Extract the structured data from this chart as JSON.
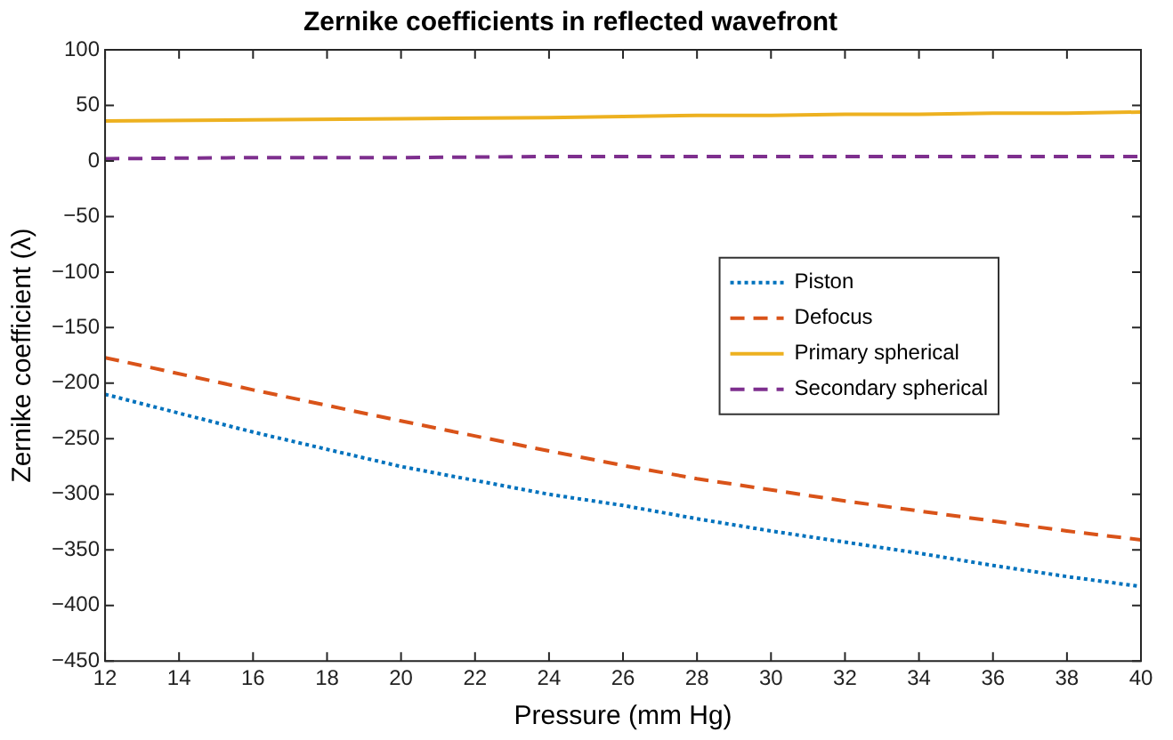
{
  "chart_data": {
    "type": "line",
    "title": "Zernike coefficients in reflected wavefront",
    "xlabel": "Pressure (mm Hg)",
    "ylabel": "Zernike coefficient (λ)",
    "x": [
      12,
      16,
      20,
      24,
      26,
      28,
      30,
      32,
      34,
      36,
      38,
      40
    ],
    "series": [
      {
        "name": "Piston",
        "color": "#0072bd",
        "line_style": "dotted",
        "values": [
          -210,
          -244,
          -275,
          -300,
          -310,
          -322,
          -333,
          -343,
          -353,
          -364,
          -374,
          -383
        ]
      },
      {
        "name": "Defocus",
        "color": "#d95319",
        "line_style": "dashed",
        "values": [
          -177,
          -206,
          -234,
          -261,
          -274,
          -286,
          -296,
          -306,
          -315,
          -324,
          -333,
          -341
        ]
      },
      {
        "name": "Primary spherical",
        "color": "#edb120",
        "line_style": "solid",
        "values": [
          36,
          37,
          38,
          39,
          40,
          41,
          41,
          42,
          42,
          43,
          43,
          44
        ]
      },
      {
        "name": "Secondary spherical",
        "color": "#7e2f8e",
        "line_style": "dashed",
        "values": [
          2,
          3,
          3,
          4,
          4,
          4,
          4,
          4,
          4,
          4,
          4,
          4
        ]
      }
    ],
    "xlim": [
      12,
      40
    ],
    "xticks": [
      12,
      14,
      16,
      18,
      20,
      22,
      24,
      26,
      28,
      30,
      32,
      34,
      36,
      38,
      40
    ],
    "ylim": [
      -450,
      100
    ],
    "yticks": [
      -450,
      -400,
      -350,
      -300,
      -250,
      -200,
      -150,
      -100,
      -50,
      0,
      50,
      100
    ],
    "grid": false,
    "legend": "right",
    "marker": "none"
  }
}
